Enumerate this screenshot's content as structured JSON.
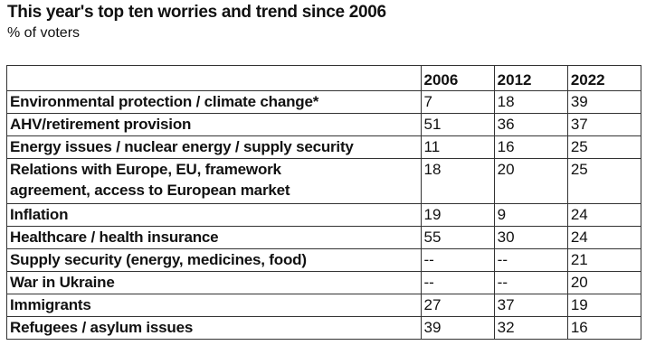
{
  "title": "This year's top ten worries and trend since 2006",
  "subtitle": "% of voters",
  "chart_data": {
    "type": "table",
    "title": "This year's top ten worries and trend since 2006",
    "subtitle": "% of voters",
    "columns": [
      "",
      "2006",
      "2012",
      "2022"
    ],
    "rows": [
      {
        "label": "Environmental protection / climate change*",
        "values": [
          "7",
          "18",
          "39"
        ]
      },
      {
        "label": "AHV/retirement provision",
        "values": [
          "51",
          "36",
          "37"
        ]
      },
      {
        "label": "Energy issues / nuclear energy / supply security",
        "values": [
          "11",
          "16",
          "25"
        ]
      },
      {
        "label": "Relations with Europe, EU, framework agreement, access to European market",
        "values": [
          "18",
          "20",
          "25"
        ]
      },
      {
        "label": "Inflation",
        "values": [
          "19",
          "9",
          "24"
        ]
      },
      {
        "label": "Healthcare / health insurance",
        "values": [
          "55",
          "30",
          "24"
        ]
      },
      {
        "label": "Supply security (energy, medicines, food)",
        "values": [
          "--",
          "--",
          "21"
        ]
      },
      {
        "label": "War in Ukraine",
        "values": [
          "--",
          "--",
          "20"
        ]
      },
      {
        "label": "Immigrants",
        "values": [
          "27",
          "37",
          "19"
        ]
      },
      {
        "label": "Refugees / asylum issues",
        "values": [
          "39",
          "32",
          "16"
        ]
      }
    ]
  }
}
